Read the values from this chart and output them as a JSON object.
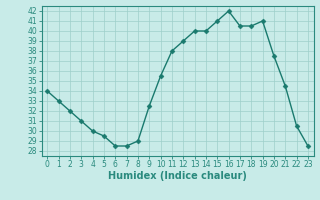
{
  "x": [
    0,
    1,
    2,
    3,
    4,
    5,
    6,
    7,
    8,
    9,
    10,
    11,
    12,
    13,
    14,
    15,
    16,
    17,
    18,
    19,
    20,
    21,
    22,
    23
  ],
  "y": [
    34,
    33,
    32,
    31,
    30,
    29.5,
    28.5,
    28.5,
    29,
    32.5,
    35.5,
    38,
    39,
    40,
    40,
    41,
    42,
    40.5,
    40.5,
    41,
    37.5,
    34.5,
    30.5,
    28.5
  ],
  "line_color": "#1a7a6e",
  "marker_color": "#1a7a6e",
  "bg_color": "#c8ebe8",
  "grid_color": "#9ecfca",
  "xlabel": "Humidex (Indice chaleur)",
  "xlim": [
    -0.5,
    23.5
  ],
  "ylim": [
    27.5,
    42.5
  ],
  "yticks": [
    28,
    29,
    30,
    31,
    32,
    33,
    34,
    35,
    36,
    37,
    38,
    39,
    40,
    41,
    42
  ],
  "xticks": [
    0,
    1,
    2,
    3,
    4,
    5,
    6,
    7,
    8,
    9,
    10,
    11,
    12,
    13,
    14,
    15,
    16,
    17,
    18,
    19,
    20,
    21,
    22,
    23
  ],
  "tick_label_fontsize": 5.5,
  "xlabel_fontsize": 7.0,
  "line_width": 1.0,
  "marker_size": 2.5,
  "spine_color": "#2a8a7e"
}
